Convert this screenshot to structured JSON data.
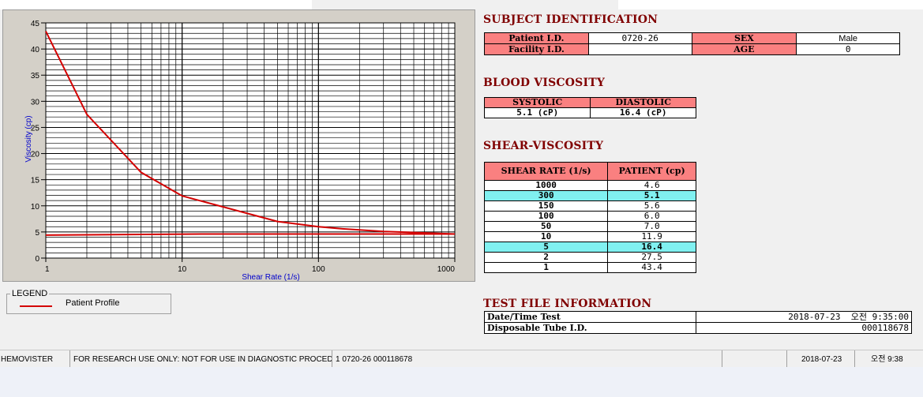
{
  "chart_data": {
    "type": "line",
    "xscale": "log",
    "xlim": [
      1,
      1000
    ],
    "ylim": [
      0,
      45
    ],
    "xlabel": "Shear Rate (1/s)",
    "ylabel": "Viscosity (cp)",
    "xticks": [
      1,
      10,
      100,
      1000
    ],
    "yticks": [
      0,
      5,
      10,
      15,
      20,
      25,
      30,
      35,
      40,
      45
    ],
    "grid": true,
    "series": [
      {
        "name": "Patient Profile",
        "color": "#d40000",
        "x": [
          1,
          2,
          5,
          10,
          50,
          100,
          150,
          300,
          1000
        ],
        "y": [
          43.4,
          27.5,
          16.4,
          11.9,
          7.0,
          6.0,
          5.6,
          5.1,
          4.6
        ]
      },
      {
        "color": "#d40000",
        "x": [
          1,
          15,
          1000
        ],
        "y": [
          4.4,
          4.6,
          4.6
        ]
      }
    ]
  },
  "legend": {
    "title": "LEGEND",
    "items": [
      "Patient Profile"
    ]
  },
  "subject": {
    "title": "SUBJECT IDENTIFICATION",
    "patient_id_label": "Patient I.D.",
    "patient_id": "0720-26",
    "sex_label": "SEX",
    "sex": "Male",
    "facility_id_label": "Facility I.D.",
    "facility_id": "",
    "age_label": "AGE",
    "age": "0"
  },
  "blood_viscosity": {
    "title": "BLOOD VISCOSITY",
    "systolic_label": "SYSTOLIC",
    "diastolic_label": "DIASTOLIC",
    "systolic": "5.1 (cP)",
    "diastolic": "16.4 (cP)"
  },
  "shear": {
    "title": "SHEAR-VISCOSITY",
    "col_rate": "SHEAR RATE (1/s)",
    "col_patient": "PATIENT (cp)",
    "rows": [
      {
        "rate": "1000",
        "value": "4.6",
        "highlight": false
      },
      {
        "rate": "300",
        "value": "5.1",
        "highlight": true
      },
      {
        "rate": "150",
        "value": "5.6",
        "highlight": false
      },
      {
        "rate": "100",
        "value": "6.0",
        "highlight": false
      },
      {
        "rate": "50",
        "value": "7.0",
        "highlight": false
      },
      {
        "rate": "10",
        "value": "11.9",
        "highlight": false
      },
      {
        "rate": "5",
        "value": "16.4",
        "highlight": true
      },
      {
        "rate": "2",
        "value": "27.5",
        "highlight": false
      },
      {
        "rate": "1",
        "value": "43.4",
        "highlight": false
      }
    ]
  },
  "testfile": {
    "title": "TEST FILE INFORMATION",
    "datetime_label": "Date/Time Test",
    "datetime": "2018-07-23  오전 9:35:00",
    "tube_label": "Disposable Tube I.D.",
    "tube": "000118678"
  },
  "statusbar": {
    "app": "HEMOVISTER",
    "notice": "FOR RESEARCH USE ONLY: NOT FOR USE IN DIAGNOSTIC PROCEDURES",
    "record": "1  0720-26  000118678",
    "empty": "",
    "date": "2018-07-23",
    "time": "오전 9:38"
  }
}
